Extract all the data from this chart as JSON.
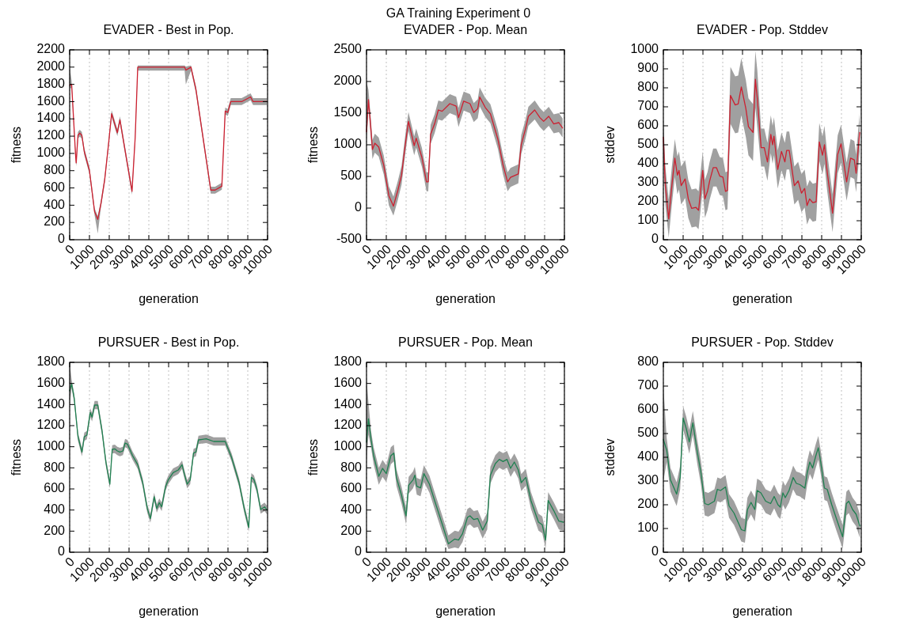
{
  "chart_data": [
    {
      "type": "line",
      "title": "EVADER - Best in Pop.",
      "xlabel": "generation",
      "ylabel": "fitness",
      "annotations": [
        "GA Training Experiment 0"
      ],
      "xlim": [
        0,
        10000
      ],
      "xticks": [
        0,
        1000,
        2000,
        3000,
        4000,
        5000,
        6000,
        7000,
        8000,
        9000,
        10000
      ],
      "ylim": [
        0,
        2200
      ],
      "yticks": [
        0,
        200,
        400,
        600,
        800,
        1000,
        1200,
        1400,
        1600,
        1800,
        2000,
        2200
      ],
      "grid": "x",
      "x": [
        0,
        100,
        300,
        330,
        420,
        510,
        615,
        740,
        1000,
        1260,
        1420,
        1580,
        1770,
        1960,
        2120,
        2410,
        2540,
        2800,
        3150,
        3310,
        3440,
        5810,
        5870,
        6130,
        6380,
        7130,
        7350,
        7690,
        7860,
        7990,
        8140,
        8690,
        9140,
        9270,
        9970
      ],
      "series": [
        {
          "color": "#cc2030",
          "values": [
            1790,
            1800,
            975,
            890,
            1210,
            1235,
            1210,
            1020,
            800,
            325,
            235,
            415,
            695,
            1100,
            1460,
            1240,
            1390,
            1035,
            560,
            1180,
            2000,
            2000,
            1965,
            2000,
            1740,
            575,
            575,
            620,
            1490,
            1475,
            1600,
            1600,
            1655,
            1600,
            1600
          ],
          "lower": [
            1750,
            1760,
            935,
            850,
            1170,
            1195,
            1170,
            980,
            760,
            285,
            70,
            375,
            655,
            1060,
            1420,
            1200,
            1350,
            995,
            520,
            1140,
            1960,
            1960,
            1800,
            1960,
            1700,
            535,
            535,
            580,
            1450,
            1435,
            1560,
            1560,
            1615,
            1560,
            1560
          ],
          "upper": [
            2000,
            1840,
            1015,
            930,
            1250,
            1275,
            1250,
            1060,
            840,
            365,
            275,
            455,
            735,
            1140,
            1500,
            1280,
            1430,
            1075,
            600,
            1220,
            2020,
            2020,
            2005,
            2020,
            1780,
            615,
            615,
            660,
            1530,
            1515,
            1640,
            1640,
            1695,
            1640,
            1640
          ]
        }
      ]
    },
    {
      "type": "line",
      "title": "EVADER - Pop. Mean",
      "xlabel": "generation",
      "ylabel": "fitness",
      "xlim": [
        0,
        10000
      ],
      "xticks": [
        0,
        1000,
        2000,
        3000,
        4000,
        5000,
        6000,
        7000,
        8000,
        9000,
        10000
      ],
      "ylim": [
        -500,
        2500
      ],
      "yticks": [
        -500,
        0,
        500,
        1000,
        1500,
        2000,
        2500
      ],
      "grid": "x",
      "x": [
        0,
        100,
        200,
        300,
        420,
        615,
        870,
        1130,
        1360,
        1580,
        1770,
        1960,
        2120,
        2410,
        2510,
        2800,
        3030,
        3120,
        3240,
        3440,
        3630,
        3820,
        4210,
        4530,
        4650,
        4910,
        5230,
        5420,
        5620,
        5720,
        6000,
        6260,
        6640,
        6900,
        7130,
        7280,
        7670,
        7820,
        8030,
        8180,
        8500,
        8760,
        8950,
        9210,
        9460,
        9720,
        9910
      ],
      "series": [
        {
          "color": "#cc2030",
          "values": [
            1205,
            1715,
            1330,
            925,
            1025,
            965,
            680,
            195,
            30,
            275,
            520,
            1005,
            1370,
            985,
            1105,
            800,
            415,
            415,
            1165,
            1330,
            1550,
            1530,
            1650,
            1610,
            1430,
            1690,
            1650,
            1510,
            1570,
            1755,
            1590,
            1490,
            1085,
            680,
            415,
            485,
            540,
            1005,
            1245,
            1450,
            1550,
            1430,
            1370,
            1450,
            1330,
            1350,
            1265
          ],
          "lower": [
            1055,
            1565,
            1180,
            775,
            875,
            815,
            530,
            45,
            -120,
            125,
            370,
            855,
            1220,
            835,
            955,
            650,
            265,
            265,
            1015,
            1180,
            1400,
            1380,
            1500,
            1460,
            1280,
            1540,
            1500,
            1360,
            1420,
            1605,
            1440,
            1340,
            935,
            530,
            265,
            335,
            390,
            855,
            1095,
            1300,
            1400,
            1280,
            1220,
            1300,
            1180,
            1200,
            1115
          ],
          "upper": [
            2000,
            1865,
            1480,
            1075,
            1175,
            1115,
            830,
            345,
            180,
            425,
            670,
            1155,
            1520,
            1135,
            1255,
            950,
            565,
            565,
            1315,
            1480,
            1700,
            1680,
            1800,
            1760,
            1580,
            1840,
            1800,
            1660,
            1720,
            1905,
            1740,
            1640,
            1235,
            830,
            565,
            635,
            690,
            1155,
            1395,
            1600,
            1700,
            1580,
            1520,
            1600,
            1480,
            1500,
            1415
          ]
        }
      ]
    },
    {
      "type": "line",
      "title": "EVADER - Pop. Stddev",
      "xlabel": "generation",
      "ylabel": "stddev",
      "xlim": [
        0,
        10000
      ],
      "xticks": [
        0,
        1000,
        2000,
        3000,
        4000,
        5000,
        6000,
        7000,
        8000,
        9000,
        10000
      ],
      "ylim": [
        0,
        1000
      ],
      "yticks": [
        0,
        100,
        200,
        300,
        400,
        500,
        600,
        700,
        800,
        900,
        1000
      ],
      "grid": "x",
      "x": [
        0,
        100,
        270,
        430,
        580,
        710,
        790,
        900,
        1100,
        1260,
        1430,
        1650,
        1780,
        1990,
        2100,
        2230,
        2340,
        2520,
        2680,
        2850,
        3010,
        3140,
        3240,
        3390,
        3630,
        3780,
        3940,
        4170,
        4300,
        4530,
        4650,
        4750,
        4940,
        5100,
        5260,
        5430,
        5520,
        5590,
        5780,
        5970,
        6140,
        6230,
        6360,
        6620,
        6810,
        6980,
        7140,
        7260,
        7390,
        7550,
        7720,
        7880,
        8040,
        8140,
        8270,
        8550,
        8810,
        8980,
        9260,
        9460,
        9650,
        9740,
        9920
      ],
      "series": [
        {
          "color": "#cc2030",
          "values": [
            540,
            285,
            110,
            285,
            430,
            340,
            365,
            285,
            320,
            215,
            165,
            170,
            155,
            365,
            215,
            255,
            310,
            380,
            380,
            335,
            330,
            255,
            260,
            760,
            710,
            715,
            805,
            690,
            595,
            565,
            845,
            740,
            485,
            485,
            410,
            555,
            500,
            545,
            370,
            465,
            410,
            470,
            470,
            285,
            310,
            245,
            270,
            180,
            215,
            195,
            200,
            515,
            445,
            500,
            365,
            140,
            450,
            505,
            305,
            430,
            420,
            350,
            565
          ],
          "lower": [
            440,
            185,
            10,
            185,
            330,
            240,
            265,
            185,
            220,
            115,
            65,
            70,
            55,
            265,
            115,
            155,
            210,
            280,
            280,
            235,
            230,
            155,
            160,
            610,
            560,
            565,
            655,
            540,
            445,
            415,
            695,
            590,
            385,
            385,
            310,
            455,
            400,
            445,
            270,
            365,
            310,
            370,
            370,
            185,
            210,
            145,
            170,
            80,
            115,
            95,
            100,
            415,
            345,
            400,
            265,
            40,
            350,
            405,
            205,
            330,
            320,
            250,
            465
          ],
          "upper": [
            640,
            385,
            210,
            385,
            530,
            440,
            465,
            385,
            420,
            315,
            265,
            270,
            255,
            465,
            315,
            355,
            410,
            480,
            480,
            435,
            430,
            355,
            360,
            910,
            860,
            865,
            955,
            840,
            745,
            715,
            995,
            890,
            585,
            585,
            510,
            655,
            600,
            645,
            470,
            565,
            510,
            570,
            570,
            385,
            410,
            345,
            370,
            280,
            315,
            295,
            300,
            615,
            545,
            600,
            465,
            240,
            550,
            605,
            405,
            530,
            520,
            450,
            665
          ]
        }
      ]
    },
    {
      "type": "line",
      "title": "PURSUER - Best in Pop.",
      "xlabel": "generation",
      "ylabel": "fitness",
      "xlim": [
        0,
        10000
      ],
      "xticks": [
        0,
        1000,
        2000,
        3000,
        4000,
        5000,
        6000,
        7000,
        8000,
        9000,
        10000
      ],
      "ylim": [
        0,
        1800
      ],
      "yticks": [
        0,
        200,
        400,
        600,
        800,
        1000,
        1200,
        1400,
        1600,
        1800
      ],
      "grid": "x",
      "x": [
        0,
        100,
        230,
        420,
        620,
        740,
        870,
        1040,
        1130,
        1260,
        1420,
        1640,
        1830,
        2030,
        2150,
        2280,
        2410,
        2540,
        2690,
        2800,
        2920,
        3180,
        3440,
        3690,
        3920,
        4080,
        4270,
        4400,
        4530,
        4650,
        4850,
        4980,
        5230,
        5490,
        5680,
        5810,
        5940,
        6090,
        6260,
        6380,
        6510,
        6900,
        7280,
        7860,
        8180,
        8560,
        8820,
        9050,
        9180,
        9310,
        9460,
        9650,
        9850,
        9970
      ],
      "series": [
        {
          "color": "#1f8050",
          "values": [
            1530,
            1595,
            1460,
            1095,
            950,
            1095,
            1110,
            1325,
            1280,
            1395,
            1395,
            1145,
            855,
            645,
            975,
            980,
            960,
            950,
            960,
            1035,
            1025,
            915,
            830,
            660,
            415,
            320,
            525,
            415,
            470,
            430,
            625,
            685,
            755,
            780,
            830,
            730,
            645,
            685,
            940,
            950,
            1065,
            1075,
            1050,
            1050,
            900,
            660,
            415,
            235,
            710,
            690,
            600,
            405,
            430,
            400
          ],
          "lower": [
            1400,
            1555,
            1420,
            1055,
            910,
            1055,
            1070,
            1285,
            1240,
            1355,
            1355,
            1105,
            815,
            605,
            935,
            940,
            920,
            910,
            920,
            995,
            985,
            875,
            790,
            620,
            375,
            280,
            485,
            375,
            430,
            390,
            585,
            645,
            715,
            740,
            790,
            690,
            605,
            645,
            900,
            910,
            1025,
            1035,
            1010,
            1010,
            860,
            620,
            375,
            195,
            670,
            650,
            560,
            365,
            390,
            360
          ],
          "upper": [
            1800,
            1635,
            1500,
            1135,
            990,
            1135,
            1150,
            1365,
            1320,
            1435,
            1435,
            1185,
            895,
            685,
            1015,
            1020,
            1000,
            990,
            1000,
            1075,
            1065,
            955,
            870,
            700,
            455,
            360,
            565,
            455,
            510,
            470,
            665,
            725,
            795,
            820,
            870,
            770,
            685,
            725,
            980,
            990,
            1105,
            1115,
            1090,
            1090,
            940,
            700,
            455,
            275,
            750,
            730,
            640,
            445,
            470,
            440
          ]
        }
      ]
    },
    {
      "type": "line",
      "title": "PURSUER - Pop. Mean",
      "xlabel": "generation",
      "ylabel": "fitness",
      "xlim": [
        0,
        10000
      ],
      "xticks": [
        0,
        1000,
        2000,
        3000,
        4000,
        5000,
        6000,
        7000,
        8000,
        9000,
        10000
      ],
      "ylim": [
        0,
        1800
      ],
      "yticks": [
        0,
        200,
        400,
        600,
        800,
        1000,
        1200,
        1400,
        1600,
        1800
      ],
      "grid": "x",
      "x": [
        0,
        100,
        230,
        360,
        620,
        810,
        1000,
        1230,
        1380,
        1510,
        1770,
        2000,
        2130,
        2350,
        2440,
        2540,
        2730,
        2900,
        3180,
        3440,
        3820,
        4140,
        4460,
        4650,
        4850,
        5100,
        5230,
        5420,
        5620,
        5870,
        6100,
        6260,
        6510,
        6710,
        6900,
        7100,
        7280,
        7470,
        7670,
        7820,
        8050,
        8310,
        8690,
        8880,
        9050,
        9180,
        9460,
        9720,
        9950
      ],
      "series": [
        {
          "color": "#1f8050",
          "values": [
            1045,
            1265,
            1070,
            915,
            720,
            795,
            745,
            915,
            940,
            710,
            540,
            345,
            635,
            685,
            730,
            625,
            610,
            745,
            645,
            490,
            270,
            80,
            125,
            115,
            175,
            330,
            345,
            310,
            320,
            210,
            295,
            730,
            840,
            880,
            860,
            880,
            795,
            855,
            780,
            660,
            710,
            490,
            285,
            260,
            115,
            490,
            395,
            295,
            285
          ],
          "lower": [
            850,
            1115,
            990,
            835,
            640,
            715,
            665,
            835,
            860,
            630,
            460,
            265,
            555,
            605,
            650,
            545,
            530,
            665,
            565,
            410,
            190,
            30,
            45,
            35,
            95,
            250,
            265,
            230,
            240,
            130,
            215,
            650,
            760,
            800,
            780,
            800,
            715,
            775,
            700,
            580,
            630,
            410,
            205,
            180,
            35,
            410,
            315,
            215,
            205
          ],
          "upper": [
            1650,
            1415,
            1150,
            995,
            800,
            875,
            825,
            995,
            1020,
            790,
            620,
            425,
            715,
            765,
            810,
            705,
            690,
            825,
            725,
            570,
            350,
            160,
            205,
            195,
            255,
            410,
            425,
            390,
            400,
            290,
            375,
            810,
            920,
            960,
            940,
            960,
            875,
            935,
            860,
            740,
            790,
            570,
            365,
            340,
            195,
            570,
            475,
            375,
            365
          ]
        }
      ]
    },
    {
      "type": "line",
      "title": "PURSUER - Pop. Stddev",
      "xlabel": "generation",
      "ylabel": "stddev",
      "xlim": [
        0,
        10000
      ],
      "xticks": [
        0,
        1000,
        2000,
        3000,
        4000,
        5000,
        6000,
        7000,
        8000,
        9000,
        10000
      ],
      "ylim": [
        0,
        800
      ],
      "yticks": [
        0,
        100,
        200,
        300,
        400,
        500,
        600,
        700,
        800
      ],
      "grid": "x",
      "x": [
        0,
        170,
        360,
        670,
        850,
        1000,
        1160,
        1310,
        1490,
        1720,
        1900,
        2090,
        2270,
        2580,
        2730,
        2890,
        3140,
        3320,
        3570,
        3810,
        3940,
        4120,
        4250,
        4430,
        4620,
        4740,
        4930,
        5170,
        5420,
        5600,
        5790,
        5910,
        6040,
        6160,
        6350,
        6560,
        6720,
        6900,
        7150,
        7270,
        7400,
        7540,
        7700,
        7830,
        7950,
        8140,
        8280,
        8510,
        8750,
        9060,
        9250,
        9370,
        9560,
        9740,
        9930
      ],
      "series": [
        {
          "color": "#1f8050",
          "values": [
            475,
            430,
            305,
            245,
            315,
            565,
            520,
            465,
            545,
            420,
            335,
            205,
            200,
            215,
            265,
            260,
            275,
            195,
            165,
            120,
            95,
            90,
            180,
            210,
            180,
            260,
            250,
            215,
            205,
            235,
            200,
            190,
            250,
            230,
            260,
            315,
            290,
            285,
            270,
            335,
            380,
            355,
            405,
            440,
            380,
            270,
            265,
            200,
            140,
            65,
            205,
            215,
            180,
            160,
            110
          ],
          "lower": [
            300,
            380,
            255,
            195,
            265,
            515,
            470,
            415,
            495,
            370,
            285,
            155,
            150,
            165,
            215,
            210,
            225,
            145,
            115,
            70,
            45,
            40,
            130,
            160,
            130,
            210,
            200,
            165,
            155,
            185,
            150,
            140,
            200,
            180,
            210,
            265,
            240,
            235,
            220,
            285,
            330,
            305,
            355,
            390,
            330,
            220,
            215,
            150,
            90,
            15,
            155,
            165,
            130,
            110,
            60
          ],
          "upper": [
            700,
            480,
            355,
            295,
            365,
            615,
            570,
            515,
            595,
            470,
            385,
            255,
            250,
            265,
            315,
            310,
            325,
            245,
            215,
            170,
            145,
            140,
            230,
            260,
            230,
            310,
            300,
            265,
            255,
            285,
            250,
            240,
            300,
            280,
            310,
            365,
            340,
            335,
            320,
            385,
            430,
            405,
            455,
            490,
            430,
            320,
            315,
            250,
            190,
            115,
            255,
            265,
            230,
            210,
            160
          ]
        }
      ]
    }
  ]
}
